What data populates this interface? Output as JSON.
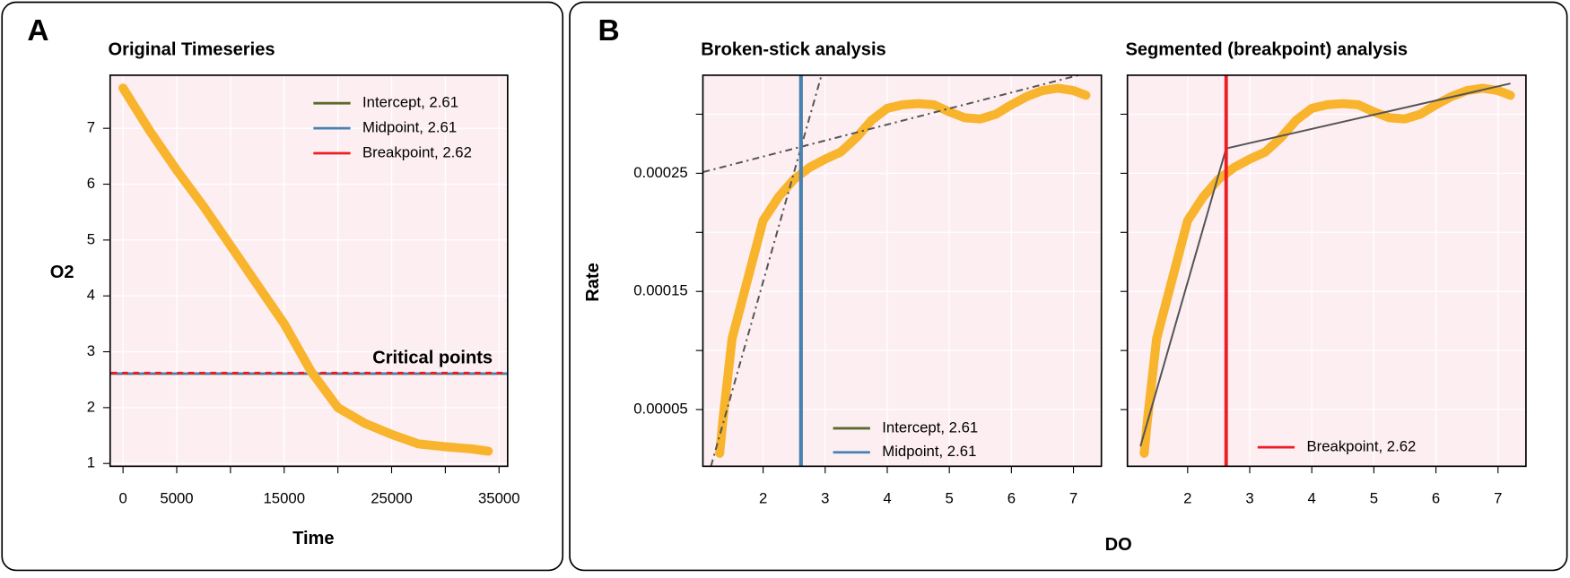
{
  "panel_labels": [
    "A",
    "B"
  ],
  "chart_data": [
    {
      "type": "line",
      "title": "Original Timeseries",
      "xlabel": "Time",
      "ylabel": "O2",
      "xlim": [
        -1200,
        35800
      ],
      "ylim": [
        0.95,
        7.95
      ],
      "xticks": [
        0,
        5000,
        15000,
        25000,
        35000
      ],
      "minor_xticks": [
        10000,
        20000,
        30000
      ],
      "yticks": [
        1,
        2,
        3,
        4,
        5,
        6,
        7
      ],
      "grid": true,
      "legend": "upper right",
      "series": [
        {
          "color": "#f9b42d",
          "x": [
            0,
            2500,
            5000,
            7500,
            10000,
            12500,
            15000,
            17500,
            20000,
            22500,
            25000,
            27500,
            30000,
            32500,
            34000
          ],
          "values": [
            7.72,
            6.95,
            6.25,
            5.6,
            4.9,
            4.2,
            3.5,
            2.65,
            2.0,
            1.72,
            1.52,
            1.35,
            1.3,
            1.26,
            1.22
          ]
        }
      ],
      "hlines": [
        {
          "name": "Intercept, 2.61",
          "color": "#5b6b2e",
          "value": 2.61,
          "dash": "none"
        },
        {
          "name": "Midpoint, 2.61",
          "color": "#4682b4",
          "value": 2.61,
          "dash": "6 5"
        },
        {
          "name": "Breakpoint, 2.62",
          "color": "#ee1c25",
          "value": 2.62,
          "dash": "6 5"
        }
      ],
      "annotation": "Critical points"
    },
    {
      "type": "line",
      "title": "Broken-stick analysis",
      "ylabel": "Rate",
      "xlim": [
        1.03,
        7.45
      ],
      "ylim": [
        2e-06,
        0.000333
      ],
      "xticks": [
        2,
        3,
        4,
        5,
        6,
        7
      ],
      "yticks": [
        5e-05,
        0.00015,
        0.00025
      ],
      "minor_yticks": [
        0.0001,
        0.0002,
        0.0003
      ],
      "grid": true,
      "legend": "lower center",
      "series": [
        {
          "color": "#f9b42d",
          "x": [
            1.3,
            1.35,
            1.5,
            1.75,
            2.0,
            2.25,
            2.5,
            2.75,
            3.0,
            3.25,
            3.5,
            3.75,
            4.0,
            4.25,
            4.5,
            4.75,
            5.0,
            5.25,
            5.5,
            5.75,
            6.0,
            6.25,
            6.5,
            6.75,
            7.0,
            7.2
          ],
          "values": [
            1.3e-05,
            4e-05,
            0.00011,
            0.00016,
            0.00021,
            0.00023,
            0.000245,
            0.000255,
            0.000262,
            0.000268,
            0.00028,
            0.000295,
            0.000305,
            0.000308,
            0.000309,
            0.000308,
            0.000302,
            0.000297,
            0.000296,
            0.0003,
            0.000308,
            0.000315,
            0.00032,
            0.000322,
            0.00032,
            0.000316
          ]
        }
      ],
      "fit_lines": [
        {
          "color": "#555555",
          "dash": "7 4 2 4",
          "x": [
            1.16,
            2.94
          ],
          "values": [
            2e-06,
            0.000333
          ]
        },
        {
          "color": "#555555",
          "dash": "7 4 2 4",
          "x": [
            1.03,
            7.45
          ],
          "values": [
            0.000251,
            0.000338
          ]
        }
      ],
      "vlines": [
        {
          "name": "Intercept, 2.61",
          "color": "#5b6b2e",
          "value": 2.61
        },
        {
          "name": "Midpoint, 2.61",
          "color": "#4682b4",
          "value": 2.61
        }
      ]
    },
    {
      "type": "line",
      "title": "Segmented (breakpoint) analysis",
      "xlabel": "DO",
      "xlim": [
        1.03,
        7.45
      ],
      "ylim": [
        2e-06,
        0.000333
      ],
      "xticks": [
        2,
        3,
        4,
        5,
        6,
        7
      ],
      "yticks": [
        5e-05,
        0.0001,
        0.00015,
        0.0002,
        0.00025,
        0.0003
      ],
      "ytick_labels": false,
      "grid": true,
      "legend": "lower center",
      "series": [
        {
          "color": "#f9b42d",
          "x": [
            1.3,
            1.35,
            1.5,
            1.75,
            2.0,
            2.25,
            2.5,
            2.75,
            3.0,
            3.25,
            3.5,
            3.75,
            4.0,
            4.25,
            4.5,
            4.75,
            5.0,
            5.25,
            5.5,
            5.75,
            6.0,
            6.25,
            6.5,
            6.75,
            7.0,
            7.2
          ],
          "values": [
            1.3e-05,
            4e-05,
            0.00011,
            0.00016,
            0.00021,
            0.00023,
            0.000245,
            0.000255,
            0.000262,
            0.000268,
            0.00028,
            0.000295,
            0.000305,
            0.000308,
            0.000309,
            0.000308,
            0.000302,
            0.000297,
            0.000296,
            0.0003,
            0.000308,
            0.000315,
            0.00032,
            0.000322,
            0.00032,
            0.000316
          ]
        }
      ],
      "fit_lines": [
        {
          "color": "#555555",
          "dash": "none",
          "x": [
            1.24,
            2.62,
            7.2
          ],
          "values": [
            1.9e-05,
            0.000271,
            0.000326
          ]
        }
      ],
      "vlines": [
        {
          "name": "Breakpoint, 2.62",
          "color": "#ee1c25",
          "value": 2.62
        }
      ]
    }
  ]
}
